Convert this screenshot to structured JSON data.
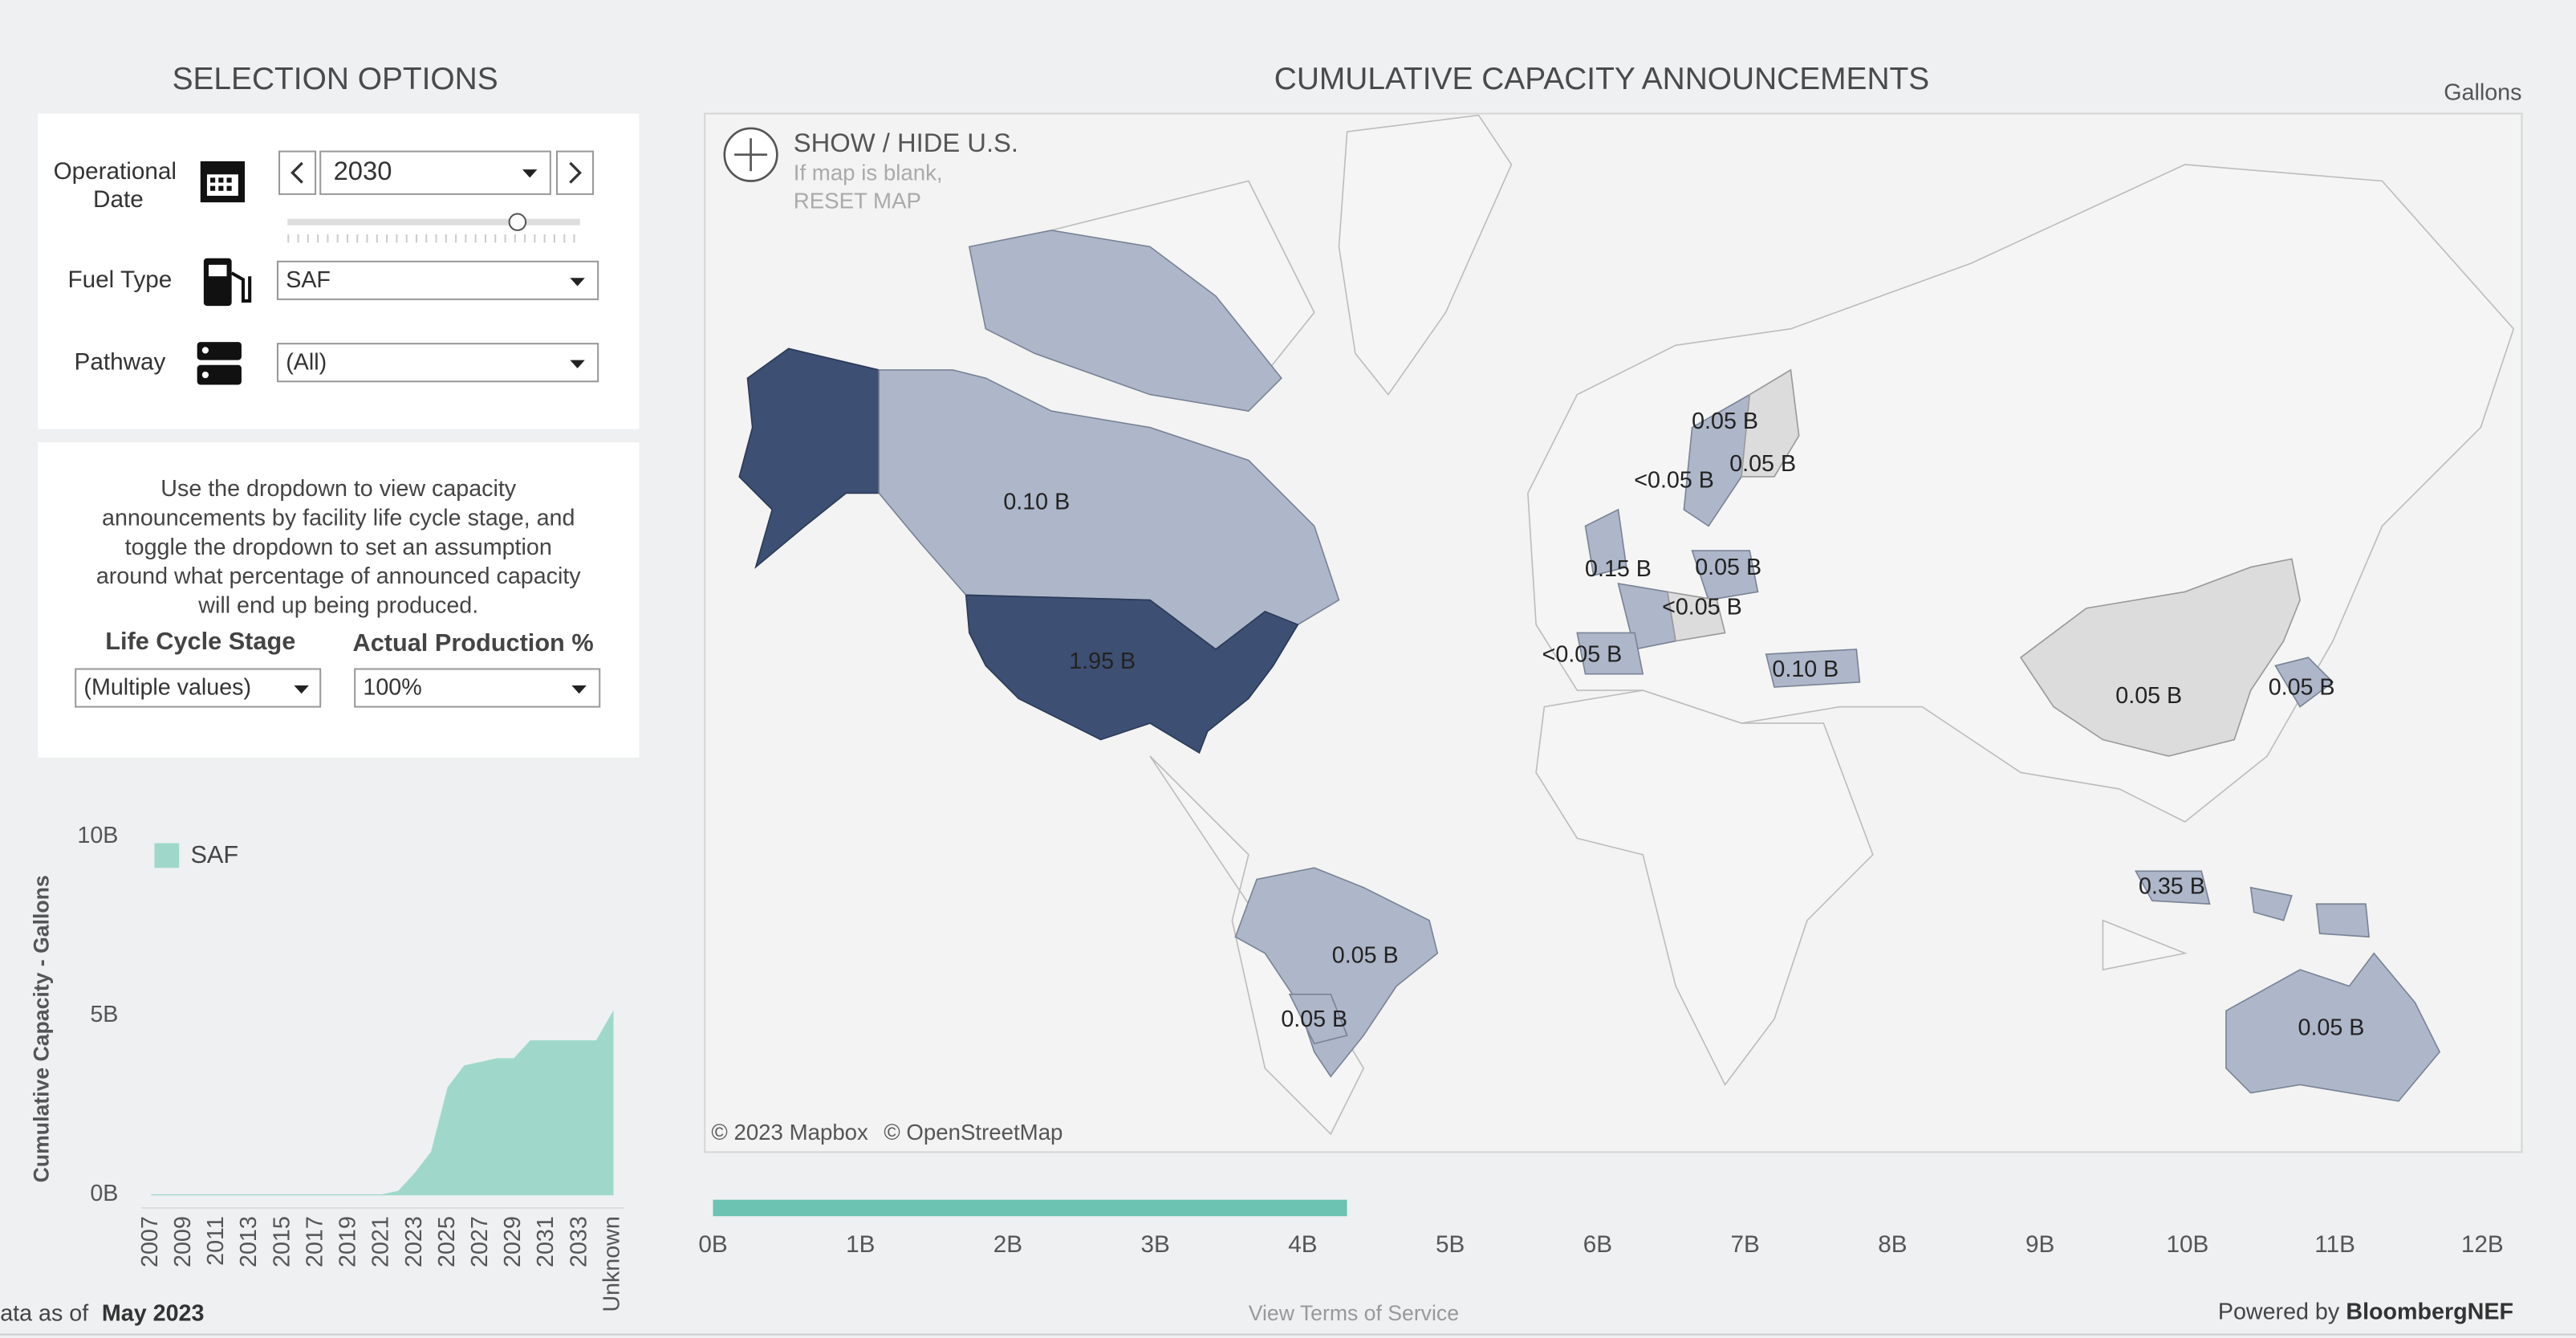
{
  "selection": {
    "title": "SELECTION OPTIONS",
    "operational_date": {
      "label": [
        "Operational",
        "Date"
      ],
      "value": "2030"
    },
    "fuel_type": {
      "label": "Fuel Type",
      "value": "SAF"
    },
    "pathway": {
      "label": "Pathway",
      "value": "(All)"
    },
    "description": [
      "Use the dropdown to view capacity",
      "announcements by facility life cycle stage, and",
      "toggle the dropdown to set an assumption",
      "around what percentage of announced capacity",
      "will end up being produced."
    ],
    "life_cycle_stage": {
      "label": "Life Cycle Stage",
      "value": "(Multiple values)"
    },
    "actual_production": {
      "label": "Actual Production %",
      "value": "100%"
    }
  },
  "map": {
    "title": "CUMULATIVE CAPACITY ANNOUNCEMENTS",
    "unit": "Gallons",
    "toggle": "SHOW / HIDE U.S.",
    "hint": [
      "If map is blank,",
      "RESET MAP"
    ],
    "attribution": [
      "© 2023 Mapbox",
      "© OpenStreetMap"
    ],
    "labels": [
      "0.10 B",
      "1.95 B",
      "0.05 B",
      "<0.05 B",
      "0.05 B",
      "0.15 B",
      "0.05 B",
      "<0.05 B",
      "<0.05 B",
      "0.10 B",
      "0.05 B",
      "0.05 B",
      "0.35 B",
      "0.05 B",
      "0.05 B",
      "0.05 B"
    ]
  },
  "chart_data": [
    {
      "type": "area",
      "ylabel": "Cumulative Capacity - Gallons",
      "categories": [
        "2007",
        null,
        "2009",
        null,
        "2011",
        null,
        "2013",
        null,
        "2015",
        null,
        "2017",
        null,
        "2019",
        null,
        "2021",
        null,
        "2023",
        null,
        "2025",
        null,
        "2027",
        null,
        "2029",
        null,
        "2031",
        null,
        "2033",
        null,
        "Unknown"
      ],
      "series": [
        {
          "name": "SAF",
          "color": "#9fd8cb",
          "values": [
            0,
            0,
            0,
            0,
            0,
            0,
            0,
            0,
            0,
            0,
            0,
            0,
            0,
            0,
            0,
            0.1,
            0.6,
            1.2,
            3.0,
            3.6,
            3.7,
            3.8,
            3.8,
            4.3,
            4.3,
            4.3,
            4.3,
            4.3,
            5.1
          ]
        }
      ],
      "ylim": [
        0,
        10
      ],
      "yticks": [
        {
          "value": 0,
          "label": "0B"
        },
        {
          "value": 5,
          "label": "5B"
        },
        {
          "value": 10,
          "label": "10B"
        }
      ],
      "grid": false
    },
    {
      "type": "bar",
      "orientation": "horizontal",
      "values": [
        4.3
      ],
      "color": "#6cc3b2",
      "xlim": [
        0,
        12
      ],
      "xticks": [
        {
          "value": 0,
          "label": "0B"
        },
        {
          "value": 1,
          "label": "1B"
        },
        {
          "value": 2,
          "label": "2B"
        },
        {
          "value": 3,
          "label": "3B"
        },
        {
          "value": 4,
          "label": "4B"
        },
        {
          "value": 5,
          "label": "5B"
        },
        {
          "value": 6,
          "label": "6B"
        },
        {
          "value": 7,
          "label": "7B"
        },
        {
          "value": 8,
          "label": "8B"
        },
        {
          "value": 9,
          "label": "9B"
        },
        {
          "value": 10,
          "label": "10B"
        },
        {
          "value": 11,
          "label": "11B"
        },
        {
          "value": 12,
          "label": "12B"
        }
      ]
    }
  ],
  "footer": {
    "data_as_of": "Data as of",
    "date": "May 2023",
    "terms": "View Terms of Service",
    "powered_by": "Powered by",
    "brand": "BloombergNEF"
  }
}
